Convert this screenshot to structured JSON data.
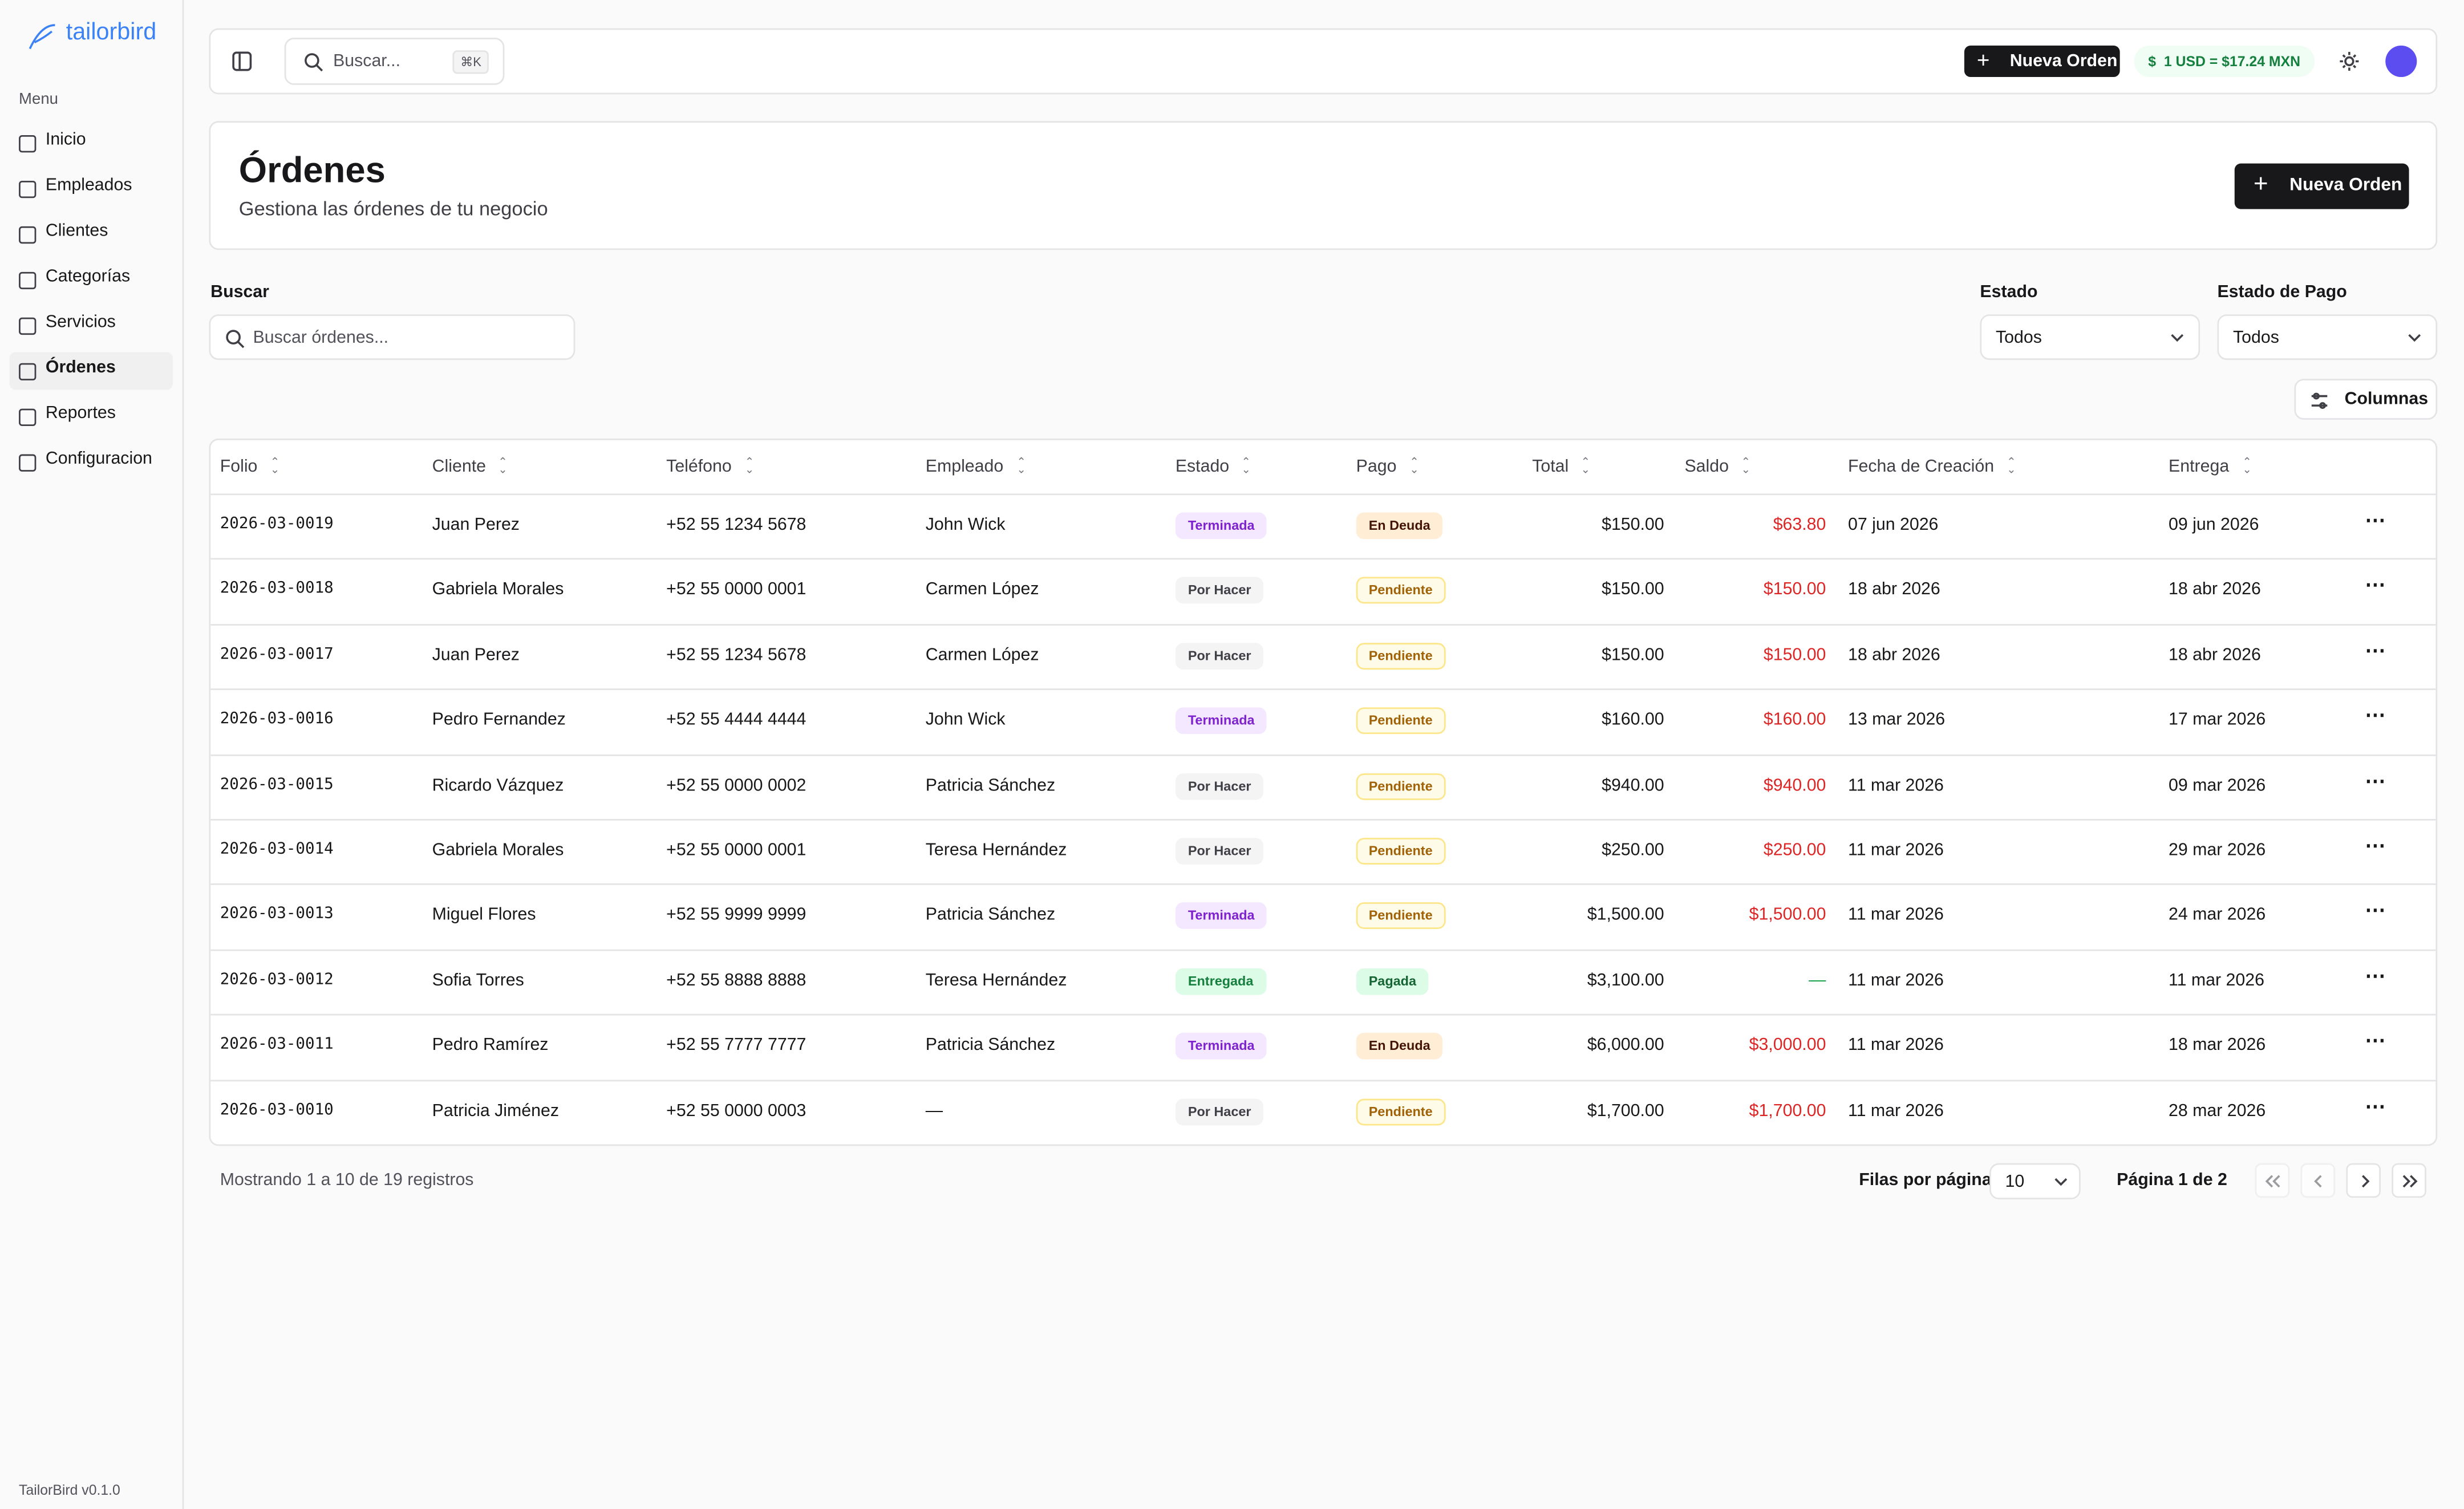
{
  "sidebar": {
    "brand": "tailorbird",
    "menu_label": "Menu",
    "items": [
      "Inicio",
      "Empleados",
      "Clientes",
      "Categorías",
      "Servicios",
      "Órdenes",
      "Reportes",
      "Configuracion"
    ],
    "active": 5,
    "version": "TailorBird v0.1.0"
  },
  "topbar": {
    "search": "Buscar...",
    "shortcut": "⌘K",
    "new_order": "Nueva Orden",
    "rate_icon": "$",
    "rate": "1 USD = $17.24 MXN"
  },
  "header": {
    "title": "Órdenes",
    "subtitle": "Gestiona las órdenes de tu negocio",
    "button": "Nueva Orden"
  },
  "filters": {
    "search_label": "Buscar",
    "search_placeholder": "Buscar órdenes...",
    "estado_label": "Estado",
    "estado_value": "Todos",
    "pago_label": "Estado de Pago",
    "pago_value": "Todos",
    "columns_button": "Columnas"
  },
  "table": {
    "columns": [
      "Folio",
      "Cliente",
      "Teléfono",
      "Empleado",
      "Estado",
      "Pago",
      "Total",
      "Saldo",
      "Fecha de Creación",
      "Entrega"
    ],
    "rows": [
      [
        "2026-03-0019",
        "Juan Perez",
        "+52 55 1234 5678",
        "John Wick",
        "Terminada",
        "En Deuda",
        "$150.00",
        "$63.80",
        "07 jun 2026",
        "09 jun 2026"
      ],
      [
        "2026-03-0018",
        "Gabriela Morales",
        "+52 55 0000 0001",
        "Carmen López",
        "Por Hacer",
        "Pendiente",
        "$150.00",
        "$150.00",
        "18 abr 2026",
        "18 abr 2026"
      ],
      [
        "2026-03-0017",
        "Juan Perez",
        "+52 55 1234 5678",
        "Carmen López",
        "Por Hacer",
        "Pendiente",
        "$150.00",
        "$150.00",
        "18 abr 2026",
        "18 abr 2026"
      ],
      [
        "2026-03-0016",
        "Pedro Fernandez",
        "+52 55 4444 4444",
        "John Wick",
        "Terminada",
        "Pendiente",
        "$160.00",
        "$160.00",
        "13 mar 2026",
        "17 mar 2026"
      ],
      [
        "2026-03-0015",
        "Ricardo Vázquez",
        "+52 55 0000 0002",
        "Patricia Sánchez",
        "Por Hacer",
        "Pendiente",
        "$940.00",
        "$940.00",
        "11 mar 2026",
        "09 mar 2026"
      ],
      [
        "2026-03-0014",
        "Gabriela Morales",
        "+52 55 0000 0001",
        "Teresa Hernández",
        "Por Hacer",
        "Pendiente",
        "$250.00",
        "$250.00",
        "11 mar 2026",
        "29 mar 2026"
      ],
      [
        "2026-03-0013",
        "Miguel Flores",
        "+52 55 9999 9999",
        "Patricia Sánchez",
        "Terminada",
        "Pendiente",
        "$1,500.00",
        "$1,500.00",
        "11 mar 2026",
        "24 mar 2026"
      ],
      [
        "2026-03-0012",
        "Sofia Torres",
        "+52 55 8888 8888",
        "Teresa Hernández",
        "Entregada",
        "Pagada",
        "$3,100.00",
        "—",
        "11 mar 2026",
        "11 mar 2026"
      ],
      [
        "2026-03-0011",
        "Pedro Ramírez",
        "+52 55 7777 7777",
        "Patricia Sánchez",
        "Terminada",
        "En Deuda",
        "$6,000.00",
        "$3,000.00",
        "11 mar 2026",
        "18 mar 2026"
      ],
      [
        "2026-03-0010",
        "Patricia Jiménez",
        "+52 55 0000 0003",
        "—",
        "Por Hacer",
        "Pendiente",
        "$1,700.00",
        "$1,700.00",
        "11 mar 2026",
        "28 mar 2026"
      ]
    ]
  },
  "footer": {
    "showing": "Mostrando 1 a 10 de 19 registros",
    "rows_per_page_label": "Filas por página",
    "rows_per_page": "10",
    "page": "Página 1 de 2"
  }
}
